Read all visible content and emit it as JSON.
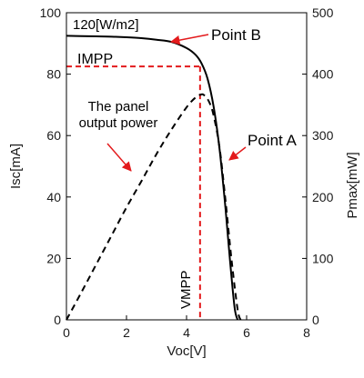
{
  "chart_data": {
    "type": "line",
    "xlabel": "Voc[V]",
    "ylabel": "Isc[mA]",
    "y2label": "Pmax[mW]",
    "xlim": [
      0,
      8
    ],
    "ylim": [
      0,
      100
    ],
    "y2lim": [
      0,
      500
    ],
    "x_ticks": [
      "0",
      "2",
      "4",
      "6",
      "8"
    ],
    "y_ticks": [
      "0",
      "20",
      "40",
      "60",
      "80",
      "100"
    ],
    "y2_ticks": [
      "0",
      "100",
      "200",
      "300",
      "400",
      "500"
    ],
    "grid": false,
    "series": [
      {
        "axis": "left",
        "style": "solid",
        "color": "#000000",
        "x": [
          0,
          0.5,
          1,
          1.5,
          2,
          2.5,
          3,
          3.5,
          4,
          4.3,
          4.5,
          4.7,
          4.9,
          5.1,
          5.3,
          5.45,
          5.6,
          5.7
        ],
        "y": [
          92.5,
          92.4,
          92.3,
          92.2,
          92.0,
          91.7,
          91.2,
          90.5,
          88.5,
          86.3,
          83.5,
          78.5,
          69.5,
          55.5,
          36.0,
          19.0,
          4.0,
          0
        ]
      },
      {
        "axis": "right",
        "style": "dashed",
        "color": "#000000",
        "x": [
          0,
          0.5,
          1,
          1.5,
          2,
          2.5,
          3,
          3.5,
          4,
          4.3,
          4.5,
          4.6,
          4.75,
          4.9,
          5.1,
          5.3,
          5.5,
          5.7,
          5.8
        ],
        "y": [
          0,
          45,
          91,
          137,
          183,
          226,
          270,
          310,
          346,
          362,
          367,
          365,
          355,
          333,
          280,
          193,
          97,
          17,
          0
        ]
      }
    ],
    "reference_lines": {
      "color": "#e31a1c",
      "impp_y": 82.5,
      "vmpp_x": 4.45
    },
    "annotations": {
      "irradiance": "120[W/m2]",
      "point_b": "Point B",
      "point_a": "Point A",
      "impp": "IMPP",
      "vmpp": "VMPP",
      "panel_line1": "The panel",
      "panel_line2": "output power"
    }
  }
}
